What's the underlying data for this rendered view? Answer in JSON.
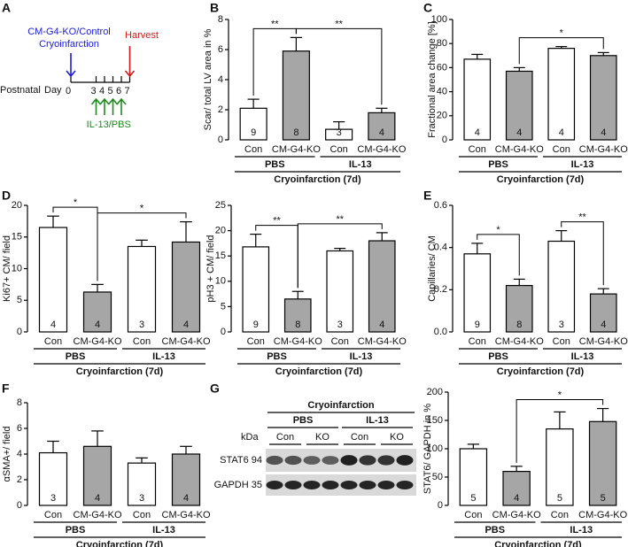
{
  "panel_labels": [
    "A",
    "B",
    "C",
    "D",
    "E",
    "F",
    "G"
  ],
  "timeline": {
    "top_label": "CM-G4-KO/Control",
    "event": "Cryoinfarction",
    "end": "Harvest",
    "axis_label": "Postnatal",
    "axis_unit": "Day",
    "days": [
      0,
      3,
      4,
      5,
      6,
      7
    ],
    "treatment": "IL-13/PBS"
  },
  "blot": {
    "title": "Cryoinfarction",
    "groups": [
      "PBS",
      "IL-13"
    ],
    "unit": "kDa",
    "lanes": [
      "Con",
      "KO",
      "Con",
      "KO"
    ],
    "rows": [
      "STAT6 94",
      "GAPDH 35"
    ]
  },
  "chart_data": [
    {
      "type": "bar",
      "ylabel": "Scar/ total LV area in %",
      "categories": [
        "Con",
        "CM-G4-KO",
        "Con",
        "CM-G4-KO"
      ],
      "groups": [
        "PBS",
        "IL-13"
      ],
      "xlabel": "Cryoinfarction (7d)",
      "values": [
        2.1,
        5.9,
        0.7,
        1.8
      ],
      "errors": [
        0.6,
        0.9,
        0.5,
        0.3
      ],
      "n": [
        9,
        8,
        3,
        4
      ],
      "colors": [
        "#ffffff",
        "#a6a6a6",
        "#ffffff",
        "#a6a6a6"
      ],
      "ylim": [
        0,
        8
      ],
      "yticks": [
        0,
        2,
        4,
        6,
        8
      ],
      "significance": [
        {
          "pair": [
            0,
            1
          ],
          "label": "**"
        },
        {
          "pair": [
            1,
            3
          ],
          "label": "**"
        }
      ]
    },
    {
      "type": "bar",
      "ylabel": "Fractional area change [%]",
      "categories": [
        "Con",
        "CM-G4-KO",
        "Con",
        "CM-G4-KO"
      ],
      "groups": [
        "PBS",
        "IL-13"
      ],
      "xlabel": "Cryoinfarction (7d)",
      "values": [
        67,
        57,
        76,
        70
      ],
      "errors": [
        4,
        3,
        1.5,
        2.5
      ],
      "n": [
        4,
        4,
        4,
        4
      ],
      "colors": [
        "#ffffff",
        "#a6a6a6",
        "#ffffff",
        "#a6a6a6"
      ],
      "ylim": [
        0,
        100
      ],
      "yticks": [
        0,
        20,
        40,
        60,
        80,
        100
      ],
      "significance": [
        {
          "pair": [
            1,
            3
          ],
          "label": "*"
        }
      ]
    },
    {
      "type": "bar",
      "ylabel": "Ki67+ CM/ field",
      "categories": [
        "Con",
        "CM-G4-KO",
        "Con",
        "CM-G4-KO"
      ],
      "groups": [
        "PBS",
        "IL-13"
      ],
      "xlabel": "Cryoinfarction (7d)",
      "values": [
        16.5,
        6.3,
        13.5,
        14.2
      ],
      "errors": [
        1.8,
        1.2,
        1.0,
        3.2
      ],
      "n": [
        4,
        4,
        3,
        4
      ],
      "colors": [
        "#ffffff",
        "#a6a6a6",
        "#ffffff",
        "#a6a6a6"
      ],
      "ylim": [
        0,
        20
      ],
      "yticks": [
        0,
        5,
        10,
        15,
        20
      ],
      "significance": [
        {
          "pair": [
            0,
            1
          ],
          "label": "*"
        },
        {
          "pair": [
            1,
            3
          ],
          "label": "*"
        }
      ]
    },
    {
      "type": "bar",
      "ylabel": "pH3 + CM/ field",
      "categories": [
        "Con",
        "CM-G4-KO",
        "Con",
        "CM-G4-KO"
      ],
      "groups": [
        "PBS",
        "IL-13"
      ],
      "xlabel": "Cryoinfarction (7d)",
      "values": [
        16.8,
        6.5,
        16,
        18
      ],
      "errors": [
        2.5,
        1.5,
        0.5,
        1.6
      ],
      "n": [
        9,
        8,
        3,
        4
      ],
      "colors": [
        "#ffffff",
        "#a6a6a6",
        "#ffffff",
        "#a6a6a6"
      ],
      "ylim": [
        0,
        25
      ],
      "yticks": [
        0,
        5,
        10,
        15,
        20,
        25
      ],
      "significance": [
        {
          "pair": [
            0,
            1
          ],
          "label": "**"
        },
        {
          "pair": [
            1,
            3
          ],
          "label": "**"
        }
      ]
    },
    {
      "type": "bar",
      "ylabel": "Capillaries/ CM",
      "categories": [
        "Con",
        "CM-G4-KO",
        "Con",
        "CM-G4-KO"
      ],
      "groups": [
        "PBS",
        "IL-13"
      ],
      "xlabel": "Cryoinfarction (7d)",
      "values": [
        0.37,
        0.22,
        0.43,
        0.18
      ],
      "errors": [
        0.05,
        0.03,
        0.05,
        0.025
      ],
      "n": [
        9,
        8,
        3,
        4
      ],
      "colors": [
        "#ffffff",
        "#a6a6a6",
        "#ffffff",
        "#a6a6a6"
      ],
      "ylim": [
        0,
        0.6
      ],
      "yticks": [
        {
          "value": 0,
          "label": "0.0"
        },
        0.2,
        0.4,
        0.6
      ],
      "significance": [
        {
          "pair": [
            0,
            1
          ],
          "label": "*"
        },
        {
          "pair": [
            2,
            3
          ],
          "label": "**"
        }
      ]
    },
    {
      "type": "bar",
      "ylabel": "αSMA+/ field",
      "categories": [
        "Con",
        "CM-G4-KO",
        "Con",
        "CM-G4-KO"
      ],
      "groups": [
        "PBS",
        "IL-13"
      ],
      "xlabel": "Cryoinfarction (7d)",
      "values": [
        4.1,
        4.6,
        3.3,
        4.0
      ],
      "errors": [
        0.9,
        1.2,
        0.4,
        0.6
      ],
      "n": [
        3,
        4,
        3,
        4
      ],
      "colors": [
        "#ffffff",
        "#a6a6a6",
        "#ffffff",
        "#a6a6a6"
      ],
      "ylim": [
        0,
        8
      ],
      "yticks": [
        0,
        2,
        4,
        6,
        8
      ],
      "significance": []
    },
    {
      "type": "bar",
      "ylabel": "STAT6/ GAPDH in %",
      "categories": [
        "Con",
        "CM-G4-KO",
        "Con",
        "CM-G4-KO"
      ],
      "groups": [
        "PBS",
        "IL-13"
      ],
      "xlabel": "Cryoinfarction (7d)",
      "values": [
        100,
        60,
        135,
        148
      ],
      "errors": [
        8,
        9,
        30,
        23
      ],
      "n": [
        5,
        4,
        5,
        5
      ],
      "colors": [
        "#ffffff",
        "#a6a6a6",
        "#ffffff",
        "#a6a6a6"
      ],
      "ylim": [
        0,
        200
      ],
      "yticks": [
        0,
        50,
        100,
        150,
        200
      ],
      "significance": [
        {
          "pair": [
            1,
            3
          ],
          "label": "*"
        }
      ]
    }
  ]
}
